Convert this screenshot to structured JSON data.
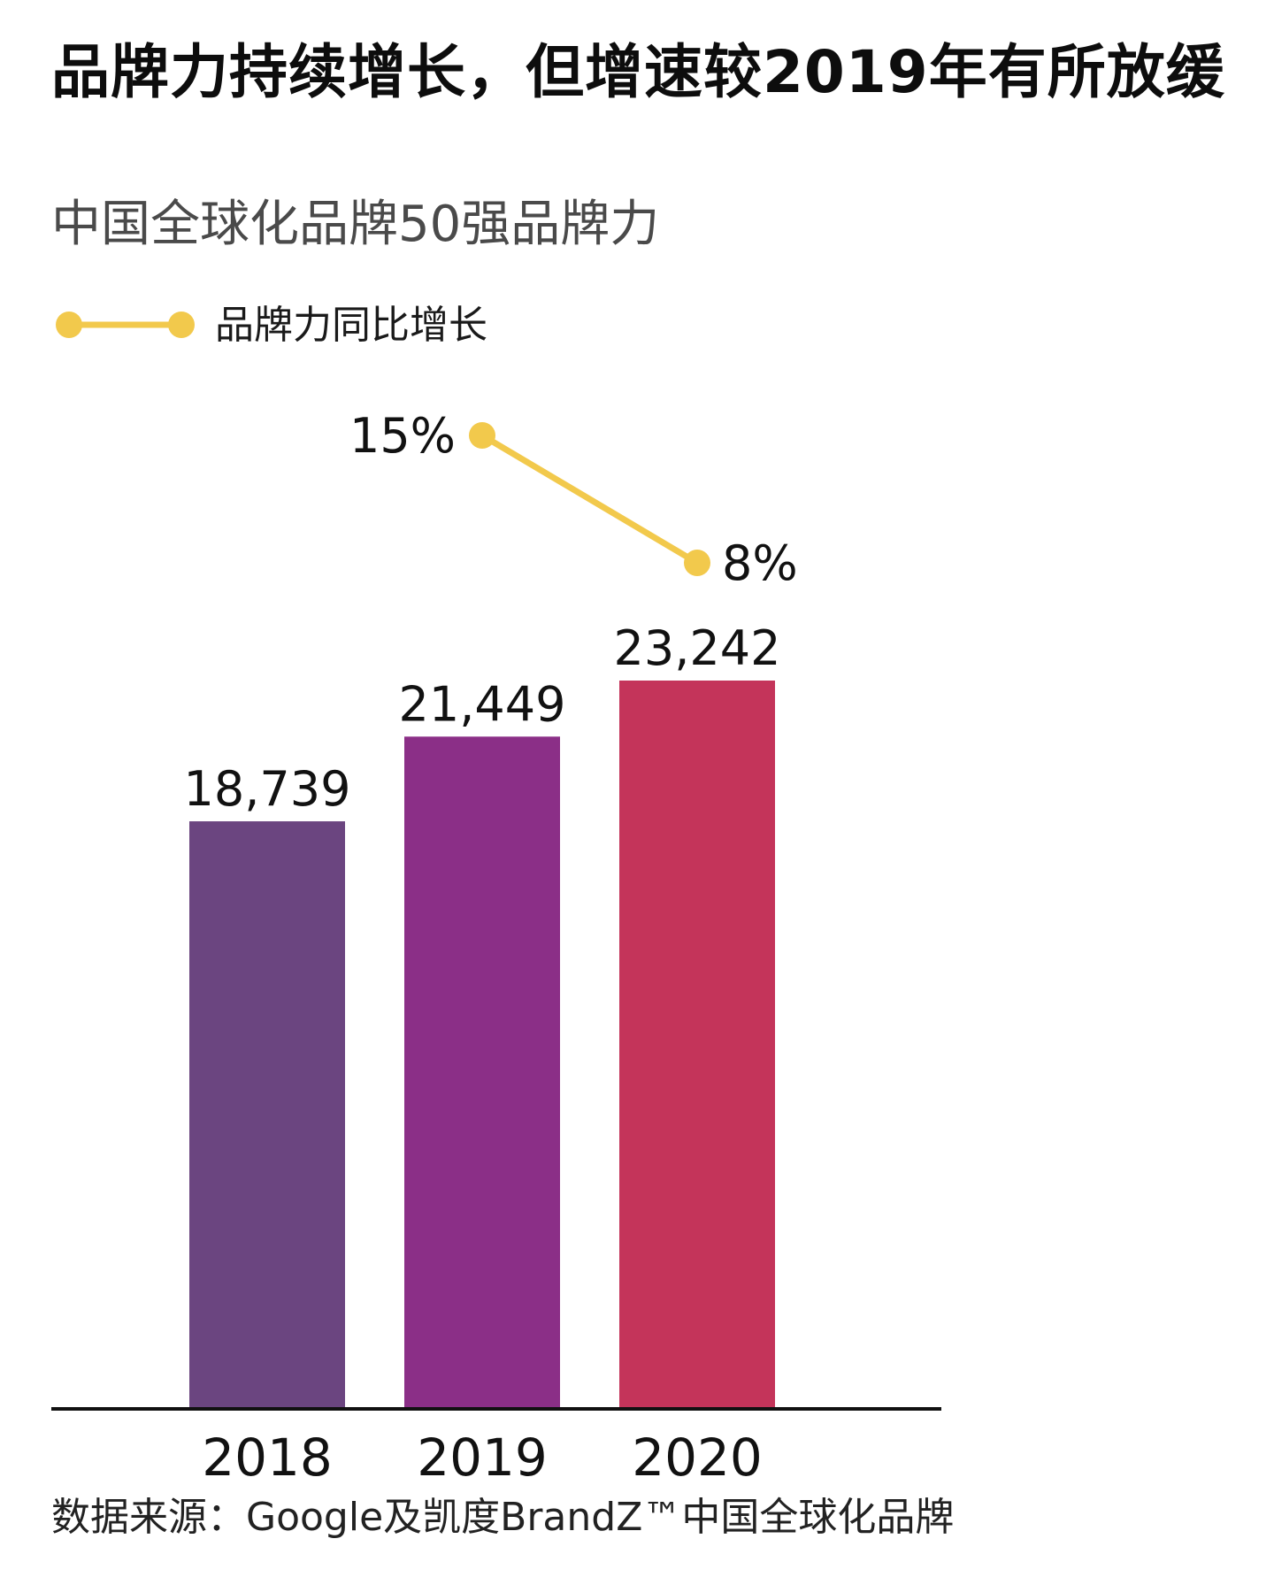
{
  "header": {
    "title": "品牌力持续增长，但增速较2019年有所放缓",
    "subtitle": "中国全球化品牌50强品牌力"
  },
  "legend": {
    "line_label": "品牌力同比增长"
  },
  "footer": {
    "source": "数据来源：Google及凯度BrandZ™中国全球化品牌"
  },
  "colors": {
    "bars": [
      "#6b4580",
      "#8b2f87",
      "#c4345a"
    ],
    "line": "#f2c94c",
    "axis": "#111111"
  },
  "chart_data": {
    "type": "bar",
    "categories": [
      "2018",
      "2019",
      "2020"
    ],
    "values": [
      18739,
      21449,
      23242
    ],
    "value_labels": [
      "18,739",
      "21,449",
      "23,242"
    ],
    "ylim": [
      0,
      23242
    ],
    "grid": false,
    "legend_position": "top-left",
    "overlay_line": {
      "type": "line",
      "name": "品牌力同比增长",
      "x": [
        "2019",
        "2020"
      ],
      "values": [
        15,
        8
      ],
      "labels": [
        "15%",
        "8%"
      ],
      "unit": "%"
    }
  }
}
